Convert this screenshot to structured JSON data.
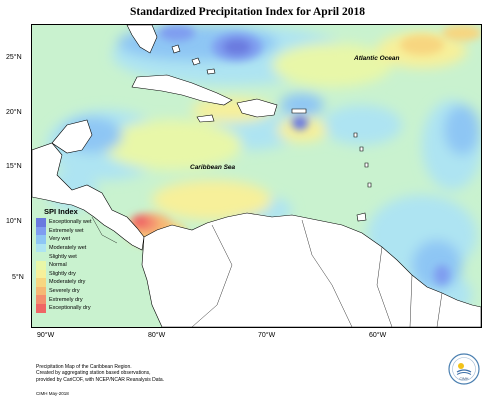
{
  "title": "Standardized Precipitation Index for April 2018",
  "map": {
    "lat_ticks": [
      "25°N",
      "20°N",
      "15°N",
      "10°N",
      "5°N"
    ],
    "lon_ticks": [
      "90°W",
      "80°W",
      "70°W",
      "60°W"
    ],
    "labels": {
      "atlantic": "Atlantic Ocean",
      "caribbean": "Caribbean Sea"
    }
  },
  "legend": {
    "title": "SPI Index",
    "items": [
      {
        "label": "Exceptionally wet",
        "color": "#6a7adf"
      },
      {
        "label": "Extremely wet",
        "color": "#7f9df0"
      },
      {
        "label": "Very wet",
        "color": "#8ec6f4"
      },
      {
        "label": "Moderately wet",
        "color": "#aee4f2"
      },
      {
        "label": "Slightly wet",
        "color": "#c9f2cf"
      },
      {
        "label": "Normal",
        "color": "#e8f7a8"
      },
      {
        "label": "Slightly dry",
        "color": "#f7f09a"
      },
      {
        "label": "Moderately dry",
        "color": "#f7d680"
      },
      {
        "label": "Severely dry",
        "color": "#f6b874"
      },
      {
        "label": "Extremely dry",
        "color": "#f48f6f"
      },
      {
        "label": "Exceptionally dry",
        "color": "#ef6565"
      }
    ]
  },
  "footnote": {
    "line1": "Precipitation Map of the Caribbean Region.",
    "line2": "Created by aggregating station based observations,",
    "line3": "provided by CariCOF, with NCEP/NCAR Reanalysis Data.",
    "stamp": "CIMH May-2018"
  },
  "logo": {
    "text": "CIMH"
  }
}
